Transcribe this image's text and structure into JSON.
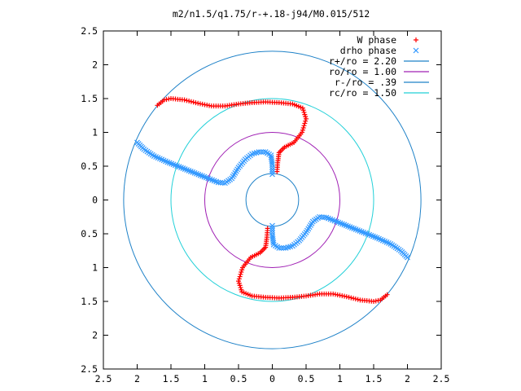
{
  "chart_data": {
    "type": "scatter",
    "title": "m2/n1.5/q1.75/r-+.18-j94/M0.015/512",
    "xlabel": "",
    "ylabel": "",
    "xlim": [
      -2.5,
      2.5
    ],
    "ylim": [
      -2.5,
      2.5
    ],
    "xticks": [
      -2.5,
      -2,
      -1.5,
      -1,
      -0.5,
      0,
      0.5,
      1,
      1.5,
      2,
      2.5
    ],
    "yticks": [
      2.5,
      2,
      1.5,
      1,
      0.5,
      0,
      -0.5,
      -1,
      -1.5,
      -2,
      -2.5
    ],
    "tick_labels": [
      "2.5",
      "2",
      "1.5",
      "1",
      "0.5",
      "0",
      "0.5",
      "1",
      "1.5",
      "2",
      "2.5"
    ],
    "grid": false,
    "legend_position": "top-right",
    "series": [
      {
        "name": "W phase",
        "marker": "plus",
        "color": "#ff0000",
        "points": [
          [
            -1.7,
            1.4
          ],
          [
            -1.6,
            1.48
          ],
          [
            -1.5,
            1.5
          ],
          [
            -1.3,
            1.48
          ],
          [
            -1.1,
            1.43
          ],
          [
            -0.9,
            1.39
          ],
          [
            -0.7,
            1.39
          ],
          [
            -0.5,
            1.42
          ],
          [
            -0.3,
            1.44
          ],
          [
            -0.1,
            1.45
          ],
          [
            0.1,
            1.44
          ],
          [
            0.3,
            1.42
          ],
          [
            0.45,
            1.36
          ],
          [
            0.5,
            1.2
          ],
          [
            0.44,
            1.0
          ],
          [
            0.32,
            0.85
          ],
          [
            0.18,
            0.78
          ],
          [
            0.1,
            0.7
          ],
          [
            0.08,
            0.55
          ],
          [
            0.07,
            0.42
          ],
          [
            1.7,
            -1.4
          ],
          [
            1.6,
            -1.48
          ],
          [
            1.5,
            -1.5
          ],
          [
            1.3,
            -1.48
          ],
          [
            1.1,
            -1.43
          ],
          [
            0.9,
            -1.39
          ],
          [
            0.7,
            -1.39
          ],
          [
            0.5,
            -1.42
          ],
          [
            0.3,
            -1.44
          ],
          [
            0.1,
            -1.45
          ],
          [
            -0.1,
            -1.44
          ],
          [
            -0.3,
            -1.42
          ],
          [
            -0.45,
            -1.36
          ],
          [
            -0.5,
            -1.2
          ],
          [
            -0.44,
            -1.0
          ],
          [
            -0.32,
            -0.85
          ],
          [
            -0.18,
            -0.78
          ],
          [
            -0.1,
            -0.7
          ],
          [
            -0.08,
            -0.55
          ],
          [
            -0.07,
            -0.42
          ]
        ]
      },
      {
        "name": "drho phase",
        "marker": "cross",
        "color": "#3399ff",
        "points": [
          [
            -2.0,
            0.85
          ],
          [
            -1.9,
            0.75
          ],
          [
            -1.75,
            0.65
          ],
          [
            -1.55,
            0.56
          ],
          [
            -1.35,
            0.48
          ],
          [
            -1.15,
            0.4
          ],
          [
            -0.95,
            0.32
          ],
          [
            -0.8,
            0.26
          ],
          [
            -0.7,
            0.25
          ],
          [
            -0.6,
            0.32
          ],
          [
            -0.5,
            0.48
          ],
          [
            -0.4,
            0.6
          ],
          [
            -0.3,
            0.68
          ],
          [
            -0.2,
            0.71
          ],
          [
            -0.1,
            0.71
          ],
          [
            -0.02,
            0.66
          ],
          [
            0.0,
            0.52
          ],
          [
            0.0,
            0.38
          ],
          [
            2.0,
            -0.85
          ],
          [
            1.9,
            -0.75
          ],
          [
            1.75,
            -0.65
          ],
          [
            1.55,
            -0.56
          ],
          [
            1.35,
            -0.48
          ],
          [
            1.15,
            -0.4
          ],
          [
            0.95,
            -0.32
          ],
          [
            0.8,
            -0.26
          ],
          [
            0.7,
            -0.25
          ],
          [
            0.6,
            -0.32
          ],
          [
            0.5,
            -0.48
          ],
          [
            0.4,
            -0.6
          ],
          [
            0.3,
            -0.68
          ],
          [
            0.2,
            -0.71
          ],
          [
            0.1,
            -0.71
          ],
          [
            0.02,
            -0.66
          ],
          [
            0.0,
            -0.52
          ],
          [
            0.0,
            -0.38
          ]
        ]
      },
      {
        "name": "r+/ro = 2.20",
        "type": "circle",
        "radius": 2.2,
        "color": "#1f82c8"
      },
      {
        "name": "ro/ro = 1.00",
        "type": "circle",
        "radius": 1.0,
        "color": "#a020b4"
      },
      {
        "name": "r-/ro = .39",
        "type": "circle",
        "radius": 0.39,
        "color": "#1f82c8"
      },
      {
        "name": "rc/ro = 1.50",
        "type": "circle",
        "radius": 1.5,
        "color": "#22d0d8"
      }
    ]
  }
}
